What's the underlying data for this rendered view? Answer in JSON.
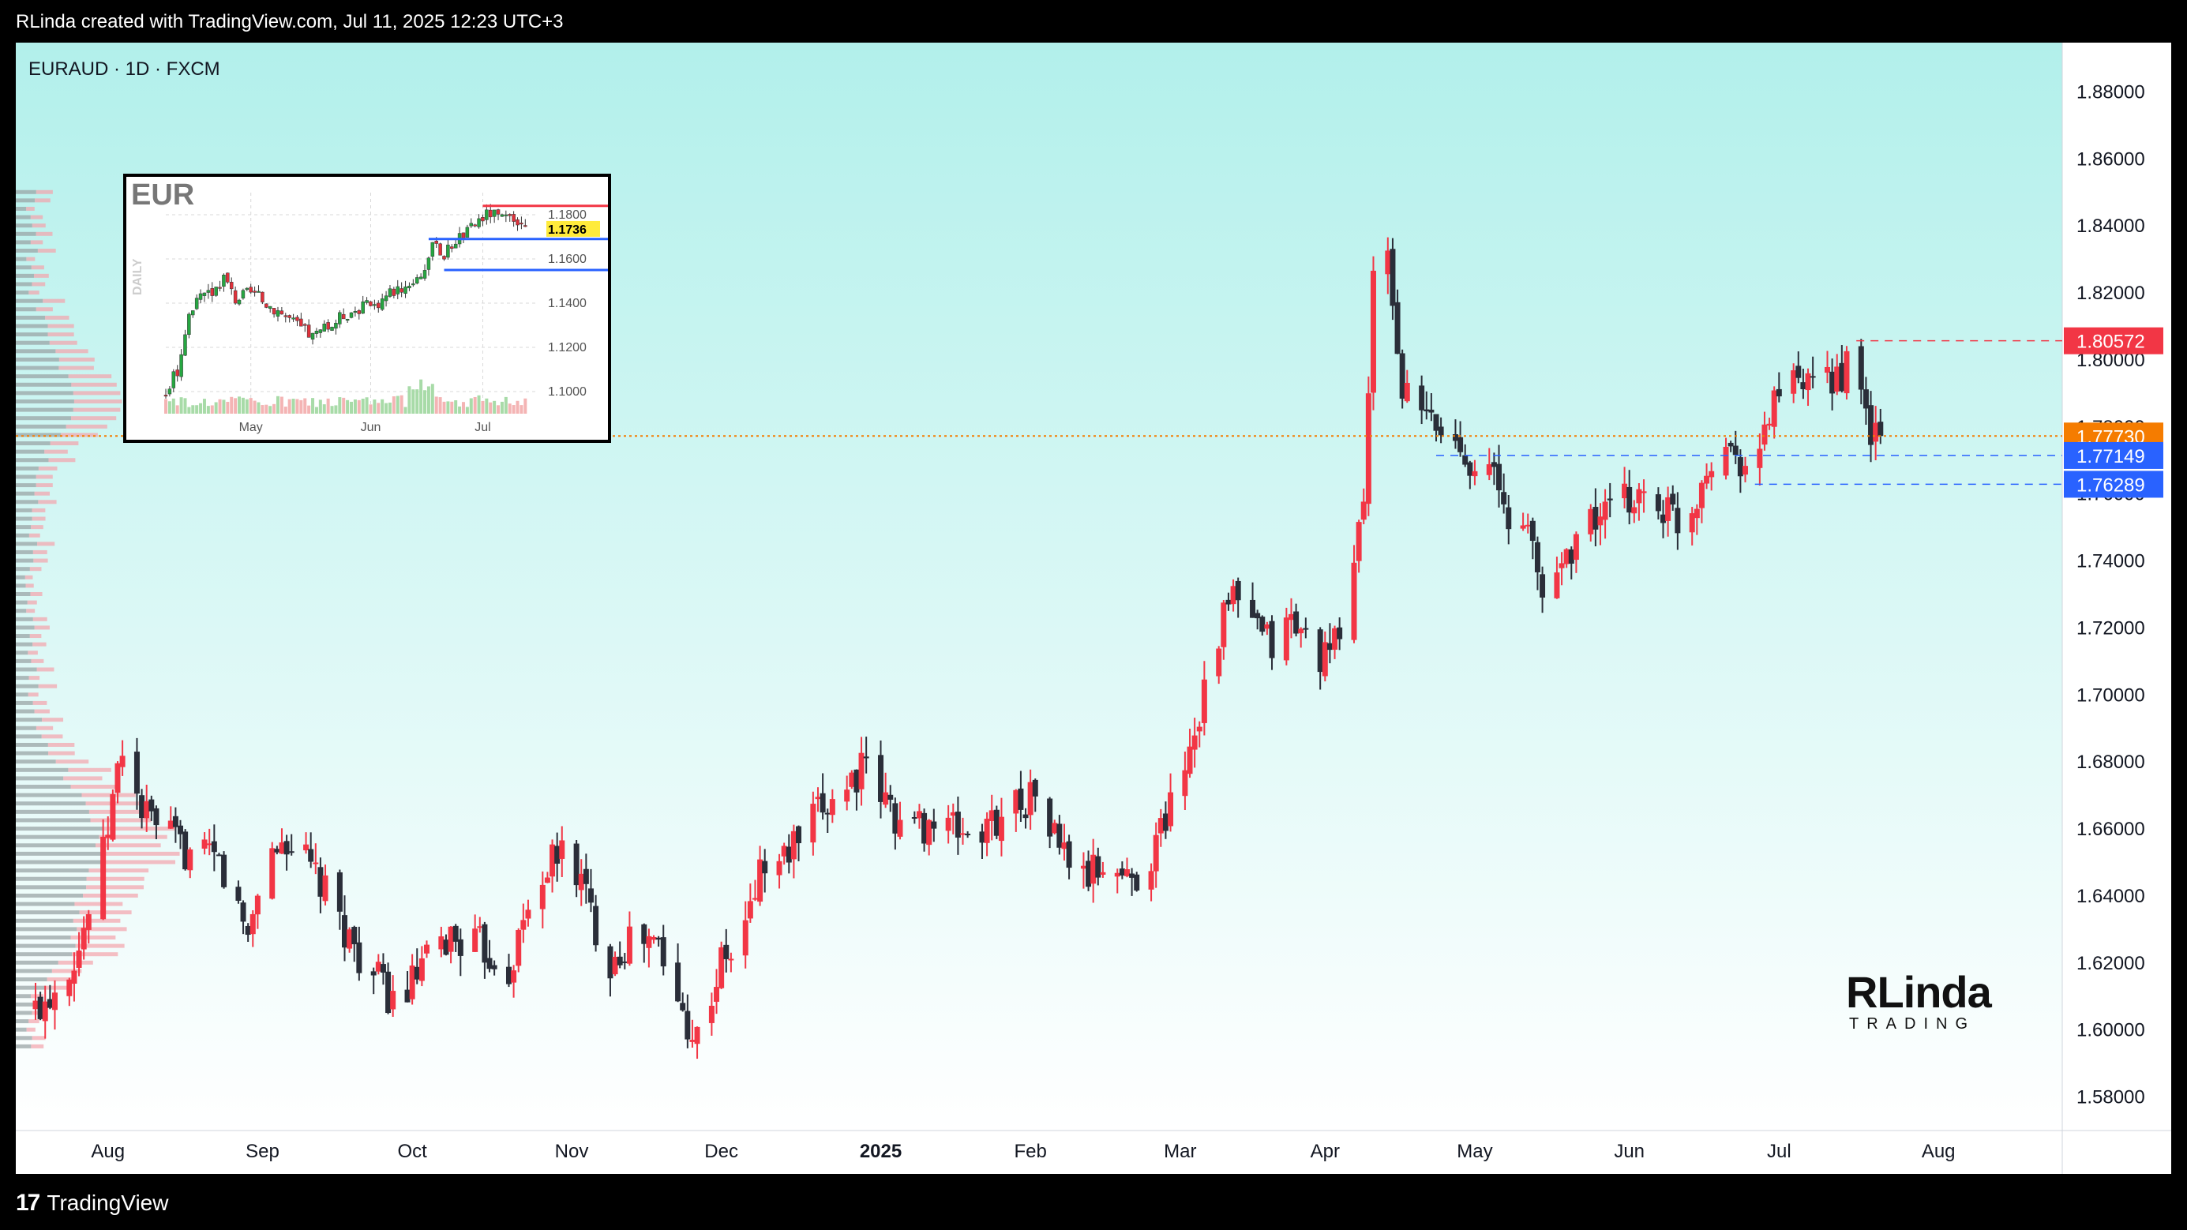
{
  "header": {
    "attribution": "RLinda created with TradingView.com, Jul 11, 2025 12:23 UTC+3"
  },
  "symbol": {
    "label": "EURAUD · 1D · FXCM"
  },
  "footer": {
    "brand": "TradingView",
    "brand_mark": "17"
  },
  "watermark": {
    "line1": "RLinda",
    "line2": "TRADING"
  },
  "colors": {
    "up": "#f23645",
    "down": "#2a2e39",
    "bg_top": "#b2f0eb",
    "bg_bottom": "#ffffff",
    "current": "#f57c00",
    "resistance": "#f23645",
    "support": "#2962ff"
  },
  "chart_data": [
    {
      "type": "candlestick",
      "title": "",
      "symbol": "EURAUD",
      "interval": "1D",
      "source": "FXCM",
      "ylim": [
        1.57,
        1.89
      ],
      "yticks": [
        1.58,
        1.6,
        1.62,
        1.64,
        1.66,
        1.68,
        1.7,
        1.72,
        1.74,
        1.76,
        1.78,
        1.8,
        1.82,
        1.84,
        1.86,
        1.88
      ],
      "ytick_labels": [
        "1.58000",
        "1.60000",
        "1.62000",
        "1.64000",
        "1.66000",
        "1.68000",
        "1.70000",
        "1.72000",
        "1.74000",
        "1.76000",
        "1.78000",
        "1.80000",
        "1.82000",
        "1.84000",
        "1.86000",
        "1.88000"
      ],
      "x_labels": [
        "Aug",
        "Sep",
        "Oct",
        "Nov",
        "Dec",
        "2025",
        "Feb",
        "Mar",
        "Apr",
        "May",
        "Jun",
        "Jul",
        "Aug"
      ],
      "x_label_days": [
        15,
        47,
        78,
        111,
        142,
        175,
        206,
        237,
        267,
        298,
        330,
        361,
        394
      ],
      "range_days": [
        0,
        418
      ],
      "close_path_points": [
        [
          0,
          1.606
        ],
        [
          5,
          1.615
        ],
        [
          9,
          1.625
        ],
        [
          14,
          1.652
        ],
        [
          18,
          1.685
        ],
        [
          22,
          1.665
        ],
        [
          26,
          1.66
        ],
        [
          32,
          1.652
        ],
        [
          38,
          1.65
        ],
        [
          44,
          1.628
        ],
        [
          47,
          1.65
        ],
        [
          52,
          1.657
        ],
        [
          57,
          1.648
        ],
        [
          62,
          1.635
        ],
        [
          68,
          1.62
        ],
        [
          75,
          1.607
        ],
        [
          80,
          1.618
        ],
        [
          86,
          1.628
        ],
        [
          92,
          1.625
        ],
        [
          98,
          1.618
        ],
        [
          104,
          1.645
        ],
        [
          110,
          1.655
        ],
        [
          114,
          1.64
        ],
        [
          118,
          1.62
        ],
        [
          124,
          1.628
        ],
        [
          129,
          1.625
        ],
        [
          132,
          1.61
        ],
        [
          137,
          1.598
        ],
        [
          142,
          1.62
        ],
        [
          146,
          1.625
        ],
        [
          150,
          1.648
        ],
        [
          154,
          1.65
        ],
        [
          159,
          1.658
        ],
        [
          164,
          1.668
        ],
        [
          171,
          1.678
        ],
        [
          176,
          1.668
        ],
        [
          180,
          1.66
        ],
        [
          185,
          1.662
        ],
        [
          190,
          1.66
        ],
        [
          196,
          1.658
        ],
        [
          202,
          1.668
        ],
        [
          207,
          1.67
        ],
        [
          212,
          1.655
        ],
        [
          217,
          1.645
        ],
        [
          222,
          1.65
        ],
        [
          226,
          1.645
        ],
        [
          230,
          1.648
        ],
        [
          235,
          1.668
        ],
        [
          240,
          1.69
        ],
        [
          244,
          1.715
        ],
        [
          248,
          1.73
        ],
        [
          252,
          1.72
        ],
        [
          256,
          1.715
        ],
        [
          260,
          1.722
        ],
        [
          264,
          1.715
        ],
        [
          268,
          1.71
        ],
        [
          272,
          1.73
        ],
        [
          275,
          1.76
        ],
        [
          277,
          1.822
        ],
        [
          279,
          1.84
        ],
        [
          281,
          1.818
        ],
        [
          283,
          1.79
        ],
        [
          286,
          1.785
        ],
        [
          290,
          1.78
        ],
        [
          294,
          1.775
        ],
        [
          298,
          1.77
        ],
        [
          302,
          1.765
        ],
        [
          305,
          1.75
        ],
        [
          308,
          1.755
        ],
        [
          312,
          1.73
        ],
        [
          316,
          1.74
        ],
        [
          320,
          1.75
        ],
        [
          326,
          1.755
        ],
        [
          332,
          1.76
        ],
        [
          338,
          1.755
        ],
        [
          342,
          1.75
        ],
        [
          346,
          1.77
        ],
        [
          350,
          1.775
        ],
        [
          354,
          1.77
        ],
        [
          356,
          1.765
        ],
        [
          360,
          1.79
        ],
        [
          364,
          1.792
        ],
        [
          368,
          1.79
        ],
        [
          372,
          1.795
        ],
        [
          376,
          1.798
        ],
        [
          380,
          1.778
        ],
        [
          382,
          1.7773
        ]
      ],
      "price_labels": [
        {
          "value": 1.80572,
          "label": "1.80572",
          "role": "resistance"
        },
        {
          "value": 1.7773,
          "label": "1.77730",
          "role": "current"
        },
        {
          "value": 1.77149,
          "label": "1.77149",
          "role": "support"
        },
        {
          "value": 1.76289,
          "label": "1.76289",
          "role": "support"
        }
      ],
      "annotations": [
        {
          "type": "hline",
          "value": 1.80572,
          "from_day": 377,
          "style": "dashed",
          "color": "#f23645"
        },
        {
          "type": "hline",
          "value": 1.77149,
          "from_day": 290,
          "style": "dashed",
          "color": "#2962ff"
        },
        {
          "type": "hline",
          "value": 1.76289,
          "from_day": 356,
          "style": "dashed",
          "color": "#2962ff"
        },
        {
          "type": "hline",
          "value": 1.7773,
          "style": "dotted",
          "color": "#f57c00"
        }
      ],
      "volume_profile": "left"
    },
    {
      "type": "candlestick",
      "title": "EUR",
      "interval_label": "DAILY",
      "ylim": [
        1.09,
        1.19
      ],
      "ytick_labels": [
        "1.1800",
        "1.1600",
        "1.1400",
        "1.1200",
        "1.1000"
      ],
      "yticks": [
        1.18,
        1.16,
        1.14,
        1.12,
        1.1
      ],
      "x_labels": [
        "May",
        "Jun",
        "Jul"
      ],
      "x_label_days": [
        22,
        53,
        82
      ],
      "range_days": [
        0,
        96
      ],
      "close_path_points": [
        [
          0,
          1.099
        ],
        [
          3,
          1.11
        ],
        [
          6,
          1.135
        ],
        [
          9,
          1.142
        ],
        [
          12,
          1.145
        ],
        [
          15,
          1.152
        ],
        [
          18,
          1.142
        ],
        [
          22,
          1.145
        ],
        [
          26,
          1.14
        ],
        [
          30,
          1.136
        ],
        [
          34,
          1.13
        ],
        [
          38,
          1.125
        ],
        [
          42,
          1.129
        ],
        [
          46,
          1.135
        ],
        [
          50,
          1.138
        ],
        [
          54,
          1.139
        ],
        [
          58,
          1.145
        ],
        [
          62,
          1.148
        ],
        [
          66,
          1.153
        ],
        [
          69,
          1.165
        ],
        [
          72,
          1.162
        ],
        [
          75,
          1.169
        ],
        [
          78,
          1.172
        ],
        [
          81,
          1.178
        ],
        [
          84,
          1.181
        ],
        [
          87,
          1.178
        ],
        [
          90,
          1.176
        ],
        [
          93,
          1.1736
        ]
      ],
      "current_label": "1.1736",
      "annotations": [
        {
          "type": "hline",
          "value": 1.184,
          "color": "#f23645"
        },
        {
          "type": "hline",
          "value": 1.169,
          "color": "#2962ff"
        },
        {
          "type": "hline",
          "value": 1.155,
          "color": "#2962ff"
        }
      ]
    }
  ]
}
